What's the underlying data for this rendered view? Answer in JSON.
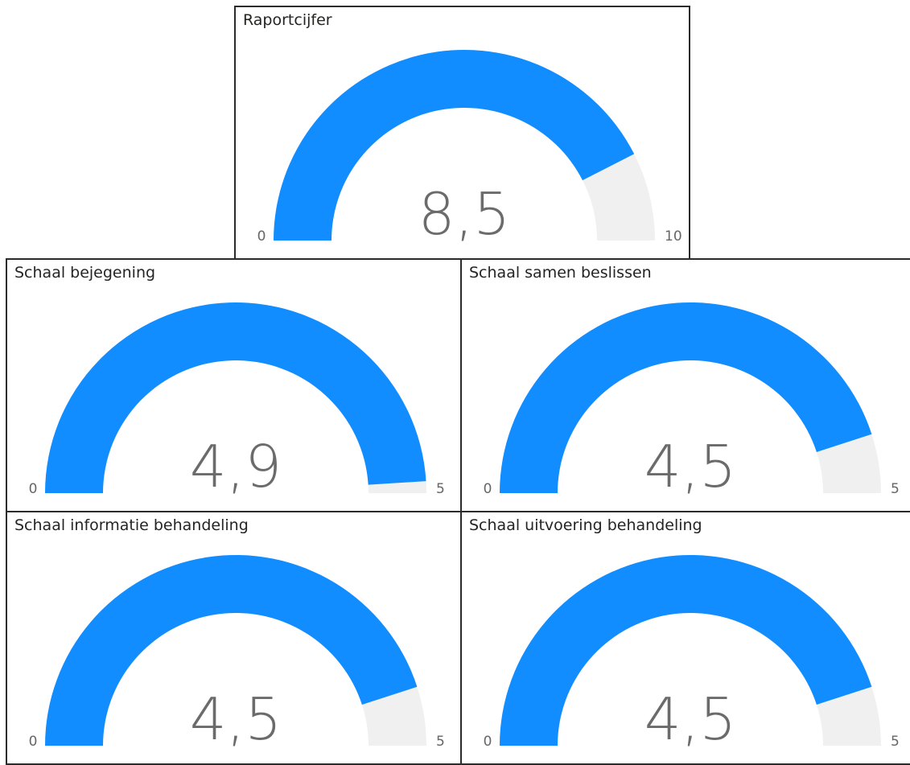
{
  "colors": {
    "value_arc": "#118DFF",
    "track_arc": "#F0F0F0",
    "text": "#605E5C"
  },
  "chart_data": [
    {
      "type": "gauge",
      "title": "Raportcijfer",
      "value": 8.5,
      "value_label": "8,5",
      "min": 0,
      "max": 10,
      "min_label": "0",
      "max_label": "10"
    },
    {
      "type": "gauge",
      "title": "Schaal bejegening",
      "value": 4.9,
      "value_label": "4,9",
      "min": 0,
      "max": 5,
      "min_label": "0",
      "max_label": "5"
    },
    {
      "type": "gauge",
      "title": "Schaal samen beslissen",
      "value": 4.5,
      "value_label": "4,5",
      "min": 0,
      "max": 5,
      "min_label": "0",
      "max_label": "5"
    },
    {
      "type": "gauge",
      "title": "Schaal informatie behandeling",
      "value": 4.5,
      "value_label": "4,5",
      "min": 0,
      "max": 5,
      "min_label": "0",
      "max_label": "5"
    },
    {
      "type": "gauge",
      "title": "Schaal uitvoering behandeling",
      "value": 4.5,
      "value_label": "4,5",
      "min": 0,
      "max": 5,
      "min_label": "0",
      "max_label": "5"
    }
  ]
}
